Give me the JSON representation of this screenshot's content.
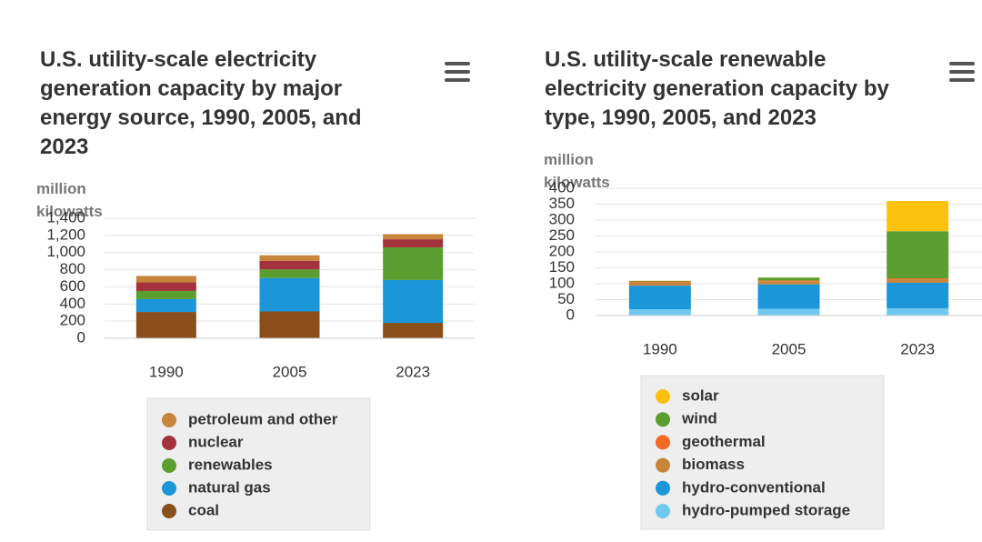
{
  "chart_data": [
    {
      "type": "bar",
      "stacked": true,
      "title": "U.S. utility-scale electricity generation capacity by major energy source, 1990, 2005, and 2023",
      "y_label": "million kilowatts",
      "categories": [
        "1990",
        "2005",
        "2023"
      ],
      "series": [
        {
          "name": "petroleum and other",
          "color": "#c8843a",
          "values": [
            75,
            65,
            60
          ]
        },
        {
          "name": "nuclear",
          "color": "#a3323d",
          "values": [
            100,
            100,
            95
          ]
        },
        {
          "name": "renewables",
          "color": "#5a9e2f",
          "values": [
            95,
            100,
            380
          ]
        },
        {
          "name": "natural gas",
          "color": "#1b96d9",
          "values": [
            150,
            390,
            500
          ]
        },
        {
          "name": "coal",
          "color": "#8a4e1a",
          "values": [
            307,
            313,
            180
          ]
        }
      ],
      "ylim": [
        0,
        1400
      ],
      "yticks": [
        0,
        200,
        400,
        600,
        800,
        {
          "value": 1000,
          "label": "1,000"
        },
        {
          "value": 1200,
          "label": "1,200"
        },
        {
          "value": 1400,
          "label": "1,400"
        }
      ],
      "grid": true
    },
    {
      "type": "bar",
      "stacked": true,
      "title": "U.S. utility-scale renewable electricity generation capacity by type, 1990, 2005, and 2023",
      "y_label": "million kilowatts",
      "categories": [
        "1990",
        "2005",
        "2023"
      ],
      "series": [
        {
          "name": "solar",
          "color": "#fcc20d",
          "values": [
            0.3,
            0.4,
            95
          ]
        },
        {
          "name": "wind",
          "color": "#5a9e2f",
          "values": [
            2,
            9,
            148
          ]
        },
        {
          "name": "geothermal",
          "color": "#f26b22",
          "values": [
            3,
            2.3,
            3
          ]
        },
        {
          "name": "biomass",
          "color": "#c8843a",
          "values": [
            10,
            10,
            11
          ]
        },
        {
          "name": "hydro-conventional",
          "color": "#1b96d9",
          "values": [
            74,
            77,
            80
          ]
        },
        {
          "name": "hydro-pumped storage",
          "color": "#6ec8ef",
          "values": [
            20,
            21,
            23
          ]
        }
      ],
      "ylim": [
        0,
        400
      ],
      "yticks": [
        0,
        50,
        100,
        150,
        200,
        250,
        300,
        350,
        400
      ],
      "grid": true
    }
  ]
}
